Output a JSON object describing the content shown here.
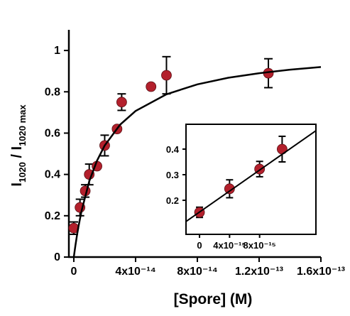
{
  "chart_data": [
    {
      "type": "scatter",
      "xlabel": "[Spore] (M)",
      "ylabel": [
        "I",
        "1020",
        " / I",
        "1020 max"
      ],
      "xlim": [
        -3.2e-15,
        1.6e-13
      ],
      "ylim": [
        0,
        1.1
      ],
      "xticks": [
        0,
        {
          "value": 4e-14,
          "label": "4x10⁻¹⁴"
        },
        {
          "value": 8e-14,
          "label": "8x10⁻¹⁴"
        },
        {
          "value": 1.2e-13,
          "label": "1.2x10⁻¹³"
        },
        {
          "value": 1.6e-13,
          "label": "1.6x10⁻¹³"
        }
      ],
      "yticks": [
        0,
        0.2,
        0.4,
        0.6,
        0.8,
        1
      ],
      "series": [
        {
          "type": "scatter",
          "color": "#b3202c",
          "x": [
            0,
            4e-15,
            7.4e-15,
            1e-14,
            1.5e-14,
            2e-14,
            2.8e-14,
            3.1e-14,
            5e-14,
            6e-14,
            1.26e-13
          ],
          "values": [
            0.14,
            0.24,
            0.32,
            0.4,
            0.44,
            0.54,
            0.62,
            0.75,
            0.825,
            0.88,
            0.89
          ],
          "errors": [
            0.03,
            0.04,
            0.03,
            0.05,
            0.01,
            0.05,
            0.01,
            0.04,
            0.01,
            0.09,
            0.07
          ]
        },
        {
          "type": "line",
          "color": "#000000",
          "x": [
            0,
            1e-15,
            2e-15,
            3e-15,
            5e-15,
            1e-14,
            1.5e-14,
            2e-14,
            3e-14,
            4e-14,
            6e-14,
            8e-14,
            1e-13,
            1.2e-13,
            1.4e-13,
            1.6e-13
          ],
          "values": [
            0,
            0.054,
            0.103,
            0.147,
            0.223,
            0.367,
            0.466,
            0.54,
            0.641,
            0.707,
            0.788,
            0.836,
            0.868,
            0.89,
            0.907,
            0.92
          ]
        }
      ]
    },
    {
      "type": "scatter",
      "xlim": [
        -1.8e-15,
        1.55e-14
      ],
      "ylim": [
        0.067,
        0.497
      ],
      "xticks": [
        0,
        {
          "value": 4e-15,
          "label": "4x10⁻¹⁵"
        },
        {
          "value": 8e-15,
          "label": "8x10⁻¹⁵"
        }
      ],
      "yticks": [
        0.2,
        0.3,
        0.4
      ],
      "series": [
        {
          "type": "scatter",
          "color": "#b3202c",
          "x": [
            0,
            4e-15,
            8e-15,
            1.1e-14
          ],
          "values": [
            0.153,
            0.245,
            0.322,
            0.4
          ],
          "errors": [
            0.02,
            0.035,
            0.03,
            0.05
          ]
        },
        {
          "type": "line",
          "color": "#000000",
          "x": [
            -1.8e-15,
            1.55e-14
          ],
          "values": [
            0.117,
            0.472
          ]
        }
      ]
    }
  ]
}
